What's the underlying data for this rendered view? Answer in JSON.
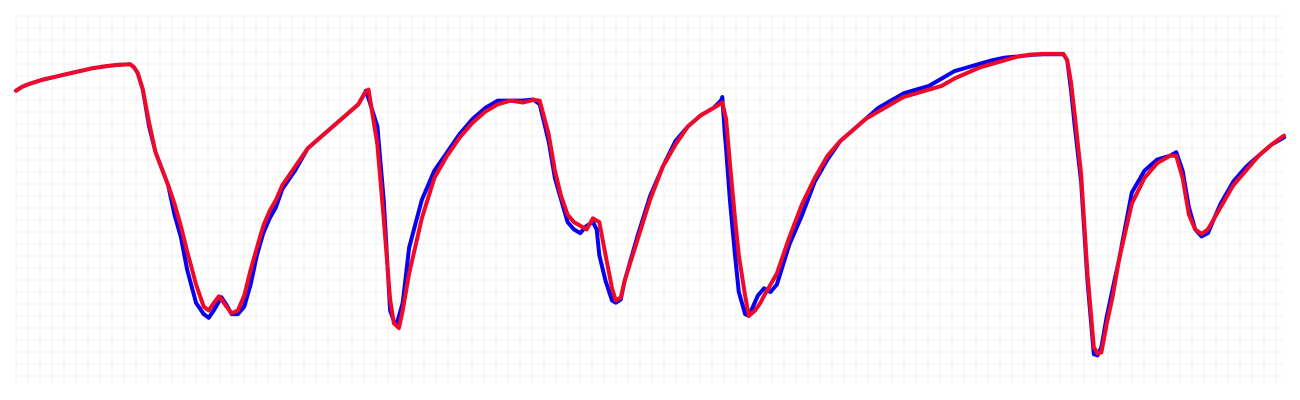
{
  "chart_data": {
    "type": "line",
    "title": "",
    "xlabel": "",
    "ylabel": "",
    "grid": true,
    "legend": "none",
    "xlim": [
      0,
      100
    ],
    "ylim": [
      0,
      100
    ],
    "series": [
      {
        "color": "#0a00f0",
        "points": [
          [
            0,
            79.7
          ],
          [
            0.5,
            80.8
          ],
          [
            1,
            81.5
          ],
          [
            2,
            82.6
          ],
          [
            3,
            83.4
          ],
          [
            4,
            84.2
          ],
          [
            5,
            85.0
          ],
          [
            6,
            85.8
          ],
          [
            7,
            86.3
          ],
          [
            8,
            86.7
          ],
          [
            9,
            86.9
          ],
          [
            9.3,
            86.1
          ],
          [
            9.6,
            84.5
          ],
          [
            10,
            80
          ],
          [
            10.5,
            70
          ],
          [
            11,
            63
          ],
          [
            12,
            54
          ],
          [
            12.5,
            46
          ],
          [
            13,
            40
          ],
          [
            13.5,
            31
          ],
          [
            14.2,
            22
          ],
          [
            14.8,
            19
          ],
          [
            15.2,
            18
          ],
          [
            15.6,
            20
          ],
          [
            16,
            22.4
          ],
          [
            16.2,
            23.6
          ],
          [
            16.6,
            21.5
          ],
          [
            17,
            19
          ],
          [
            17.5,
            19
          ],
          [
            18,
            21
          ],
          [
            18.5,
            27
          ],
          [
            19,
            35
          ],
          [
            19.5,
            41
          ],
          [
            20,
            45
          ],
          [
            20.5,
            48
          ],
          [
            21,
            53
          ],
          [
            22,
            58
          ],
          [
            23,
            64
          ],
          [
            24,
            67
          ],
          [
            25,
            70
          ],
          [
            26,
            73
          ],
          [
            27,
            76
          ],
          [
            27.5,
            79
          ],
          [
            27.6,
            79.7
          ],
          [
            28.5,
            70
          ],
          [
            29,
            50
          ],
          [
            29.5,
            20
          ],
          [
            29.8,
            17
          ],
          [
            30,
            16
          ],
          [
            30.5,
            22
          ],
          [
            31,
            37
          ],
          [
            32,
            50
          ],
          [
            33,
            58
          ],
          [
            34,
            63
          ],
          [
            35,
            68
          ],
          [
            36,
            72
          ],
          [
            37,
            75
          ],
          [
            38,
            77
          ],
          [
            39,
            77
          ],
          [
            40,
            77
          ],
          [
            40.8,
            77.3
          ],
          [
            41.3,
            76
          ],
          [
            42,
            66
          ],
          [
            42.5,
            56
          ],
          [
            43,
            50
          ],
          [
            43.5,
            44
          ],
          [
            44,
            42
          ],
          [
            44.5,
            41
          ],
          [
            45,
            43
          ],
          [
            45.5,
            44
          ],
          [
            45.8,
            42
          ],
          [
            46,
            35
          ],
          [
            46.5,
            28
          ],
          [
            47,
            22.7
          ],
          [
            47.3,
            22.1
          ],
          [
            47.7,
            23
          ],
          [
            48,
            28
          ],
          [
            49,
            40
          ],
          [
            50,
            51
          ],
          [
            51,
            59
          ],
          [
            52,
            66
          ],
          [
            53,
            70
          ],
          [
            54,
            73
          ],
          [
            55,
            75
          ],
          [
            55.6,
            77
          ],
          [
            55.7,
            78
          ],
          [
            55.9,
            68
          ],
          [
            56,
            64
          ],
          [
            56.3,
            50
          ],
          [
            56.7,
            35
          ],
          [
            57,
            25
          ],
          [
            57.5,
            19
          ],
          [
            57.8,
            18.5
          ],
          [
            58.5,
            24
          ],
          [
            59,
            26
          ],
          [
            59.5,
            25
          ],
          [
            60,
            27
          ],
          [
            61,
            38
          ],
          [
            62,
            46
          ],
          [
            63,
            55
          ],
          [
            64,
            61
          ],
          [
            65,
            66
          ],
          [
            66,
            69
          ],
          [
            67,
            72
          ],
          [
            68,
            75
          ],
          [
            69,
            77
          ],
          [
            70,
            79
          ],
          [
            71,
            80
          ],
          [
            72,
            81
          ],
          [
            73,
            83
          ],
          [
            74,
            85
          ],
          [
            75,
            86
          ],
          [
            76,
            87
          ],
          [
            77,
            88
          ],
          [
            78,
            88.7
          ],
          [
            79,
            89
          ],
          [
            80,
            89.4
          ],
          [
            81,
            89.6
          ],
          [
            82,
            89.6
          ],
          [
            82.6,
            89.6
          ],
          [
            82.9,
            88
          ],
          [
            83.2,
            80
          ],
          [
            83.5,
            70
          ],
          [
            84,
            55
          ],
          [
            84.5,
            28
          ],
          [
            85,
            8.1
          ],
          [
            85.3,
            7.8
          ],
          [
            85.6,
            10
          ],
          [
            86,
            18
          ],
          [
            86.5,
            26
          ],
          [
            87,
            34
          ],
          [
            88,
            52
          ],
          [
            89,
            58
          ],
          [
            90,
            61
          ],
          [
            91,
            62
          ],
          [
            91.5,
            63
          ],
          [
            92,
            58
          ],
          [
            92.5,
            48
          ],
          [
            93,
            42
          ],
          [
            93.5,
            40.1
          ],
          [
            94,
            41
          ],
          [
            95,
            49
          ],
          [
            96,
            55
          ],
          [
            97,
            59
          ],
          [
            98,
            62
          ],
          [
            99,
            65
          ],
          [
            100,
            67
          ]
        ]
      },
      {
        "color": "#ee0a28",
        "points": [
          [
            0,
            79.7
          ],
          [
            0.5,
            80.8
          ],
          [
            1,
            81.5
          ],
          [
            2,
            82.6
          ],
          [
            3,
            83.4
          ],
          [
            4,
            84.2
          ],
          [
            5,
            85.0
          ],
          [
            6,
            85.8
          ],
          [
            7,
            86.3
          ],
          [
            8,
            86.7
          ],
          [
            9,
            86.9
          ],
          [
            9.3,
            86.1
          ],
          [
            9.6,
            84.5
          ],
          [
            10,
            80
          ],
          [
            10.5,
            71
          ],
          [
            11,
            63
          ],
          [
            12,
            54
          ],
          [
            12.5,
            49
          ],
          [
            13,
            43
          ],
          [
            13.5,
            36
          ],
          [
            14.2,
            27
          ],
          [
            14.8,
            21
          ],
          [
            15.2,
            20
          ],
          [
            15.6,
            22
          ],
          [
            16,
            23.8
          ],
          [
            16.2,
            23
          ],
          [
            16.6,
            21
          ],
          [
            17,
            19.2
          ],
          [
            17.5,
            20
          ],
          [
            18,
            24
          ],
          [
            18.5,
            31
          ],
          [
            19,
            37
          ],
          [
            19.5,
            43
          ],
          [
            20,
            47
          ],
          [
            20.5,
            50
          ],
          [
            21,
            54
          ],
          [
            22,
            59
          ],
          [
            23,
            64
          ],
          [
            24,
            67
          ],
          [
            25,
            70
          ],
          [
            26,
            73
          ],
          [
            27,
            76
          ],
          [
            27.5,
            79
          ],
          [
            27.8,
            80
          ],
          [
            28.5,
            65
          ],
          [
            29,
            45
          ],
          [
            29.5,
            23
          ],
          [
            29.8,
            16.5
          ],
          [
            30.2,
            15.2
          ],
          [
            30.5,
            20
          ],
          [
            31,
            30
          ],
          [
            32,
            45
          ],
          [
            33,
            56
          ],
          [
            34,
            62
          ],
          [
            35,
            67
          ],
          [
            36,
            71
          ],
          [
            37,
            74
          ],
          [
            38,
            76
          ],
          [
            39,
            77
          ],
          [
            40,
            76.5
          ],
          [
            40.8,
            77.2
          ],
          [
            41.3,
            77
          ],
          [
            42,
            68
          ],
          [
            42.5,
            58
          ],
          [
            43,
            51
          ],
          [
            43.5,
            46
          ],
          [
            44,
            44
          ],
          [
            45,
            42
          ],
          [
            45.5,
            45
          ],
          [
            46,
            44
          ],
          [
            46.5,
            35
          ],
          [
            47,
            26
          ],
          [
            47.3,
            22.7
          ],
          [
            47.7,
            23.5
          ],
          [
            48,
            28
          ],
          [
            49,
            39
          ],
          [
            50,
            50
          ],
          [
            51,
            59
          ],
          [
            52,
            65
          ],
          [
            53,
            70
          ],
          [
            54,
            73
          ],
          [
            55,
            75
          ],
          [
            55.7,
            76.5
          ],
          [
            56,
            72
          ],
          [
            56.3,
            60
          ],
          [
            56.7,
            45
          ],
          [
            57,
            35
          ],
          [
            57.5,
            24
          ],
          [
            57.8,
            18.5
          ],
          [
            58.3,
            20
          ],
          [
            58.7,
            22
          ],
          [
            59,
            24
          ],
          [
            60,
            30
          ],
          [
            61,
            40
          ],
          [
            62,
            49
          ],
          [
            63,
            56
          ],
          [
            64,
            62
          ],
          [
            65,
            66
          ],
          [
            66,
            69
          ],
          [
            67,
            72
          ],
          [
            68,
            74
          ],
          [
            69,
            76
          ],
          [
            70,
            78
          ],
          [
            71,
            79
          ],
          [
            72,
            80
          ],
          [
            73,
            81
          ],
          [
            74,
            83
          ],
          [
            75,
            84.5
          ],
          [
            76,
            86
          ],
          [
            77,
            87
          ],
          [
            78,
            88
          ],
          [
            79,
            89
          ],
          [
            80,
            89.5
          ],
          [
            81,
            89.7
          ],
          [
            82,
            89.7
          ],
          [
            82.6,
            89.7
          ],
          [
            82.9,
            88
          ],
          [
            83.2,
            82
          ],
          [
            83.5,
            73
          ],
          [
            84,
            57
          ],
          [
            84.5,
            30
          ],
          [
            85,
            10
          ],
          [
            85.3,
            8.3
          ],
          [
            85.6,
            8.6
          ],
          [
            86,
            16
          ],
          [
            86.5,
            24
          ],
          [
            87,
            34
          ],
          [
            88,
            49
          ],
          [
            89,
            56
          ],
          [
            90,
            60
          ],
          [
            91,
            62
          ],
          [
            91.5,
            62
          ],
          [
            92,
            56
          ],
          [
            92.5,
            46
          ],
          [
            93,
            42
          ],
          [
            93.5,
            40.8
          ],
          [
            94,
            42
          ],
          [
            95,
            48
          ],
          [
            96,
            54
          ],
          [
            97,
            58
          ],
          [
            98,
            62
          ],
          [
            99,
            65
          ],
          [
            100,
            67.5
          ]
        ]
      }
    ]
  }
}
